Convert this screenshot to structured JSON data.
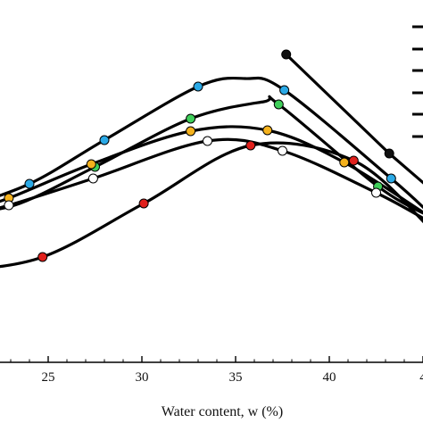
{
  "chart_data": {
    "type": "line",
    "xlabel": "Water content, w (%)",
    "ylabel": "",
    "xlim": [
      20.0,
      45.3
    ],
    "ylim": [
      0,
      474
    ],
    "y_note": "y values are relative (no y-axis tick labels visible); larger = higher on plot",
    "x_ticks": [
      "25",
      "30",
      "35",
      "40",
      "4"
    ],
    "grid": false,
    "legend": "top-right (markers only, labels cropped)",
    "series": [
      {
        "color": "#2aa9e6",
        "x": [
          20.0,
          24.0,
          28.0,
          33.0,
          35.5,
          37.6,
          43.3,
          45.3
        ],
        "y": [
          238,
          268,
          317,
          377,
          386,
          373,
          274,
          236
        ],
        "markers": [
          [
            24.0,
            268
          ],
          [
            28.0,
            317
          ],
          [
            33.0,
            377
          ],
          [
            37.6,
            373
          ],
          [
            43.3,
            274
          ]
        ]
      },
      {
        "color": "#3fcf5a",
        "x": [
          20.0,
          23.2,
          27.5,
          32.6,
          36.5,
          37.3,
          42.6,
          45.3
        ],
        "y": [
          236,
          244,
          287,
          341,
          360,
          357,
          265,
          232
        ],
        "markers": [
          [
            20.1,
            237
          ],
          [
            27.5,
            287
          ],
          [
            32.6,
            341
          ],
          [
            37.3,
            357
          ],
          [
            42.6,
            265
          ]
        ]
      },
      {
        "color": "#f5b21d",
        "x": [
          20.0,
          22.9,
          27.3,
          32.6,
          36.7,
          40.8,
          45.3
        ],
        "y": [
          232,
          252,
          290,
          327,
          328,
          292,
          232
        ],
        "markers": [
          [
            22.9,
            252
          ],
          [
            27.3,
            290
          ],
          [
            32.6,
            327
          ],
          [
            36.7,
            328
          ],
          [
            40.8,
            292
          ]
        ]
      },
      {
        "color": "#ffffff",
        "x": [
          20.0,
          22.9,
          27.4,
          33.5,
          37.5,
          42.5,
          45.3
        ],
        "y": [
          229,
          244,
          274,
          316,
          305,
          258,
          226
        ],
        "markers": [
          [
            22.9,
            244
          ],
          [
            27.4,
            274
          ],
          [
            33.5,
            316
          ],
          [
            37.5,
            305
          ],
          [
            42.5,
            258
          ]
        ]
      },
      {
        "color": "#e0201c",
        "x": [
          20.0,
          24.7,
          30.1,
          35.8,
          41.3,
          45.3
        ],
        "y": [
          170,
          186,
          246,
          311,
          294,
          220
        ],
        "markers": [
          [
            24.7,
            186
          ],
          [
            30.1,
            246
          ],
          [
            35.8,
            311
          ],
          [
            41.3,
            294
          ]
        ]
      },
      {
        "color": "#111111",
        "x": [
          37.7,
          43.2,
          45.3
        ],
        "y": [
          413,
          302,
          264
        ],
        "markers": [
          [
            37.7,
            413
          ],
          [
            43.2,
            302
          ]
        ]
      }
    ]
  }
}
